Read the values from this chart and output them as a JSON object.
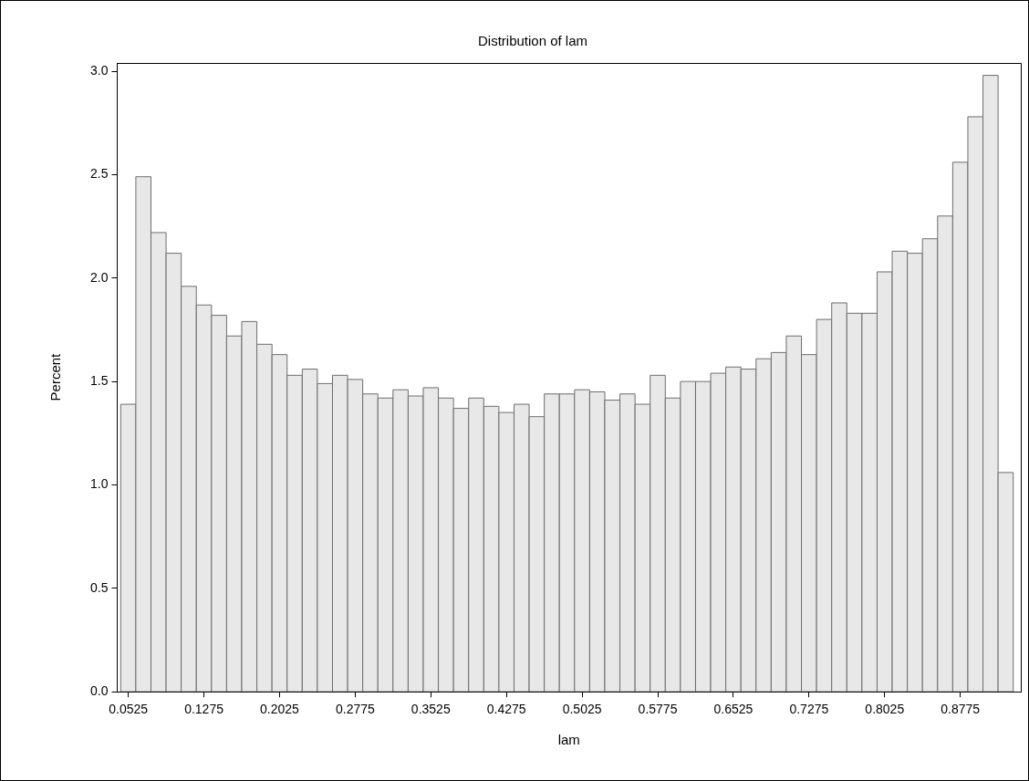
{
  "chart_data": {
    "type": "histogram",
    "title": "Distribution of lam",
    "xlabel": "lam",
    "ylabel": "Percent",
    "bins": [
      0.045,
      0.06,
      0.075,
      0.09,
      0.105,
      0.12,
      0.135,
      0.15,
      0.165,
      0.18,
      0.195,
      0.21,
      0.225,
      0.24,
      0.255,
      0.27,
      0.285,
      0.3,
      0.315,
      0.33,
      0.345,
      0.36,
      0.375,
      0.39,
      0.405,
      0.42,
      0.435,
      0.45,
      0.465,
      0.48,
      0.495,
      0.51,
      0.525,
      0.54,
      0.555,
      0.57,
      0.585,
      0.6,
      0.615,
      0.63,
      0.645,
      0.66,
      0.675,
      0.69,
      0.705,
      0.72,
      0.735,
      0.75,
      0.765,
      0.78,
      0.795,
      0.81,
      0.825,
      0.84,
      0.855,
      0.87,
      0.885,
      0.9,
      0.915,
      0.93
    ],
    "values": [
      1.39,
      2.49,
      2.22,
      2.12,
      1.96,
      1.87,
      1.82,
      1.72,
      1.79,
      1.68,
      1.63,
      1.53,
      1.56,
      1.49,
      1.53,
      1.51,
      1.44,
      1.42,
      1.46,
      1.43,
      1.47,
      1.42,
      1.37,
      1.42,
      1.38,
      1.35,
      1.39,
      1.33,
      1.44,
      1.44,
      1.46,
      1.45,
      1.41,
      1.44,
      1.39,
      1.53,
      1.42,
      1.5,
      1.5,
      1.54,
      1.57,
      1.56,
      1.61,
      1.64,
      1.72,
      1.63,
      1.8,
      1.88,
      1.83,
      1.83,
      2.03,
      2.13,
      2.12,
      2.19,
      2.3,
      2.56,
      2.78,
      2.98,
      1.06
    ],
    "color": "#e8e8e8",
    "xlim": [
      0.0415,
      0.9375
    ],
    "ylim": [
      0,
      3.04
    ],
    "xticks": [
      0.0525,
      0.1275,
      0.2025,
      0.2775,
      0.3525,
      0.4275,
      0.5025,
      0.5775,
      0.6525,
      0.7275,
      0.8025,
      0.8775
    ],
    "yticks": [
      {
        "value": 0,
        "label": "0.0"
      },
      {
        "value": 0.5,
        "label": "0.5"
      },
      {
        "value": 1,
        "label": "1.0"
      },
      {
        "value": 1.5,
        "label": "1.5"
      },
      {
        "value": 2,
        "label": "2.0"
      },
      {
        "value": 2.5,
        "label": "2.5"
      },
      {
        "value": 3,
        "label": "3.0"
      }
    ]
  }
}
